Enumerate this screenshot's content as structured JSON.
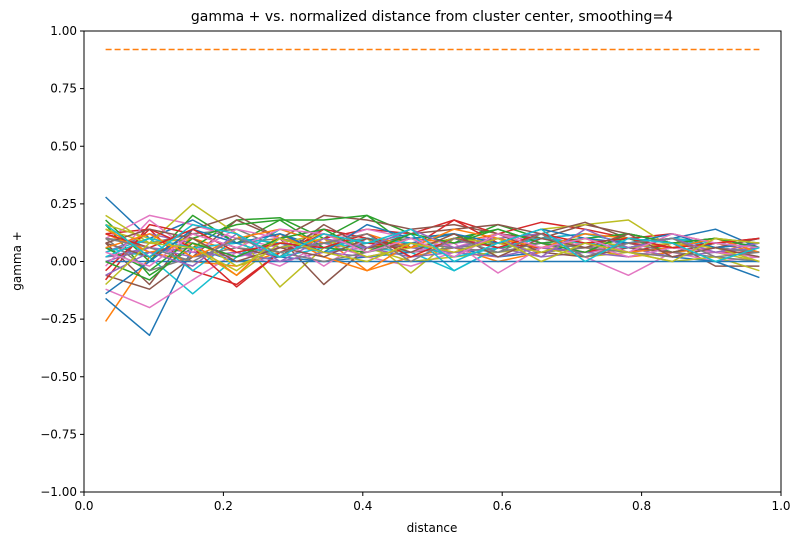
{
  "chart_data": {
    "type": "line",
    "title": "gamma + vs. normalized distance from cluster center, smoothing=4",
    "xlabel": "distance",
    "ylabel": "gamma +",
    "xlim": [
      0,
      1
    ],
    "ylim": [
      -1,
      1
    ],
    "x_ticks": [
      "0.0",
      "0.2",
      "0.4",
      "0.6",
      "0.8",
      "1.0"
    ],
    "y_ticks": [
      "−1.00",
      "−0.75",
      "−0.50",
      "−0.25",
      "0.00",
      "0.25",
      "0.50",
      "0.75",
      "1.00"
    ],
    "grid": false,
    "legend": "none",
    "x": [
      0.031,
      0.094,
      0.156,
      0.219,
      0.281,
      0.344,
      0.406,
      0.469,
      0.531,
      0.594,
      0.656,
      0.719,
      0.781,
      0.844,
      0.906,
      0.969
    ],
    "reference_line": {
      "y": 0.92,
      "style": "dashed",
      "color": "#ff7f0e"
    },
    "palette": [
      "#1f77b4",
      "#ff7f0e",
      "#2ca02c",
      "#d62728",
      "#9467bd",
      "#8c564b",
      "#e377c2",
      "#7f7f7f",
      "#bcbd22",
      "#17becf"
    ],
    "series": [
      {
        "values": [
          0.28,
          0.1,
          0.18,
          0.08,
          0.12,
          0.06,
          0.1,
          0.08,
          0.12,
          0.06,
          0.1,
          0.12,
          0.08,
          0.1,
          0.14,
          0.06
        ]
      },
      {
        "values": [
          -0.26,
          0.02,
          0.1,
          0.04,
          0.08,
          0.12,
          0.06,
          0.1,
          0.08,
          0.12,
          0.06,
          0.08,
          0.1,
          0.06,
          0.08,
          0.04
        ]
      },
      {
        "values": [
          0.16,
          -0.06,
          0.06,
          0.18,
          0.19,
          0.1,
          0.2,
          0.12,
          0.08,
          0.16,
          0.1,
          0.08,
          0.06,
          0.1,
          0.08,
          0.06
        ]
      },
      {
        "values": [
          0.12,
          0.14,
          -0.04,
          -0.1,
          0.04,
          0.1,
          0.14,
          0.12,
          0.18,
          0.12,
          0.17,
          0.14,
          0.1,
          0.12,
          0.08,
          0.06
        ]
      },
      {
        "values": [
          0.04,
          0.12,
          0.08,
          0.02,
          0.06,
          0.14,
          0.1,
          0.06,
          0.08,
          0.1,
          0.12,
          0.06,
          0.08,
          0.04,
          0.06,
          0.1
        ]
      },
      {
        "values": [
          -0.06,
          -0.12,
          0.02,
          0.18,
          0.1,
          0.2,
          0.18,
          0.14,
          0.16,
          0.12,
          0.1,
          0.16,
          0.12,
          0.08,
          -0.02,
          -0.02
        ]
      },
      {
        "values": [
          0.1,
          0.2,
          0.16,
          0.1,
          0.06,
          0.08,
          0.02,
          -0.02,
          0.04,
          0.06,
          0.08,
          0.02,
          -0.06,
          0.04,
          0.0,
          0.02
        ]
      },
      {
        "values": [
          0.02,
          0.04,
          0.06,
          0.08,
          0.1,
          0.06,
          0.08,
          0.1,
          0.06,
          0.08,
          0.1,
          0.06,
          0.08,
          0.1,
          0.06,
          0.08
        ]
      },
      {
        "values": [
          0.2,
          0.08,
          0.25,
          0.12,
          -0.11,
          0.06,
          0.1,
          -0.05,
          0.1,
          0.08,
          0.14,
          0.16,
          0.18,
          0.06,
          0.04,
          0.0
        ]
      },
      {
        "values": [
          0.06,
          0.02,
          -0.14,
          0.02,
          0.14,
          0.08,
          0.06,
          0.04,
          -0.04,
          0.06,
          0.08,
          0.1,
          0.06,
          0.08,
          0.04,
          0.02
        ]
      },
      {
        "values": [
          -0.16,
          -0.32,
          0.06,
          0.0,
          0.02,
          0.0,
          0.02,
          0.04,
          0.06,
          0.02,
          0.04,
          0.08,
          0.06,
          0.02,
          0.0,
          -0.07
        ]
      },
      {
        "values": [
          0.14,
          0.04,
          0.0,
          -0.02,
          0.04,
          0.1,
          -0.04,
          0.02,
          0.06,
          0.0,
          0.04,
          0.06,
          0.02,
          0.04,
          0.06,
          0.04
        ]
      },
      {
        "values": [
          0.18,
          0.0,
          0.2,
          0.08,
          0.18,
          0.18,
          0.2,
          0.06,
          0.1,
          0.14,
          0.08,
          0.06,
          0.1,
          0.04,
          0.08,
          0.06
        ]
      },
      {
        "values": [
          -0.08,
          0.16,
          0.12,
          0.06,
          0.02,
          0.14,
          0.1,
          0.06,
          0.18,
          0.08,
          0.06,
          0.1,
          0.04,
          0.08,
          0.1,
          0.06
        ]
      },
      {
        "values": [
          0.02,
          0.06,
          0.04,
          0.02,
          0.08,
          0.04,
          0.06,
          0.02,
          0.04,
          0.06,
          0.02,
          0.04,
          0.06,
          0.02,
          0.04,
          0.02
        ]
      },
      {
        "values": [
          0.08,
          -0.1,
          0.14,
          0.2,
          0.1,
          -0.1,
          0.06,
          0.12,
          0.14,
          0.16,
          0.12,
          0.17,
          0.1,
          0.08,
          0.06,
          0.1
        ]
      },
      {
        "values": [
          -0.12,
          -0.2,
          -0.08,
          0.04,
          -0.02,
          0.08,
          0.14,
          0.1,
          0.06,
          0.12,
          0.08,
          0.04,
          0.06,
          0.08,
          0.04,
          0.02
        ]
      },
      {
        "values": [
          0.1,
          0.08,
          0.12,
          0.14,
          0.06,
          0.08,
          0.1,
          0.04,
          0.06,
          0.08,
          0.04,
          0.06,
          0.08,
          0.04,
          0.02,
          0.0
        ]
      },
      {
        "values": [
          0.16,
          0.1,
          0.06,
          -0.06,
          0.08,
          0.12,
          0.06,
          0.0,
          0.02,
          0.04,
          0.06,
          0.02,
          0.04,
          0.0,
          0.02,
          -0.04
        ]
      },
      {
        "values": [
          0.04,
          0.1,
          -0.04,
          0.1,
          0.08,
          0.04,
          0.08,
          0.12,
          -0.04,
          0.06,
          0.1,
          0.12,
          0.08,
          0.1,
          0.06,
          0.04
        ]
      },
      {
        "values": [
          0.0,
          0.0,
          0.0,
          0.0,
          0.0,
          0.0,
          0.0,
          0.0,
          0.0,
          0.0,
          0.0,
          0.0,
          0.0,
          0.0,
          0.0,
          0.0
        ]
      },
      {
        "values": [
          0.12,
          0.04,
          0.08,
          -0.06,
          0.12,
          0.02,
          -0.04,
          0.08,
          0.04,
          0.1,
          0.06,
          0.08,
          0.04,
          0.06,
          0.08,
          0.06
        ]
      },
      {
        "values": [
          0.06,
          -0.04,
          0.1,
          0.16,
          0.18,
          0.06,
          0.04,
          0.1,
          0.12,
          0.06,
          0.08,
          0.1,
          0.12,
          0.08,
          0.1,
          0.08
        ]
      },
      {
        "values": [
          -0.04,
          0.14,
          0.06,
          -0.11,
          0.04,
          0.12,
          0.08,
          0.06,
          0.1,
          0.08,
          0.06,
          0.04,
          0.08,
          0.06,
          0.04,
          0.04
        ]
      },
      {
        "values": [
          0.0,
          0.06,
          0.02,
          0.04,
          0.0,
          0.04,
          0.02,
          0.06,
          0.04,
          0.02,
          0.06,
          0.04,
          0.02,
          0.06,
          0.04,
          0.06
        ]
      },
      {
        "values": [
          0.08,
          0.02,
          0.12,
          0.06,
          0.02,
          0.16,
          0.06,
          0.08,
          0.02,
          0.12,
          0.04,
          0.02,
          0.06,
          0.04,
          0.08,
          0.1
        ]
      },
      {
        "values": [
          -0.02,
          0.18,
          0.04,
          0.14,
          0.1,
          -0.02,
          0.1,
          0.04,
          0.08,
          -0.05,
          0.06,
          0.08,
          0.02,
          0.06,
          0.04,
          0.02
        ]
      },
      {
        "values": [
          0.1,
          -0.04,
          0.02,
          0.06,
          0.04,
          0.0,
          0.04,
          0.08,
          0.06,
          0.04,
          0.08,
          0.06,
          0.04,
          0.02,
          0.06,
          0.04
        ]
      },
      {
        "values": [
          0.14,
          0.08,
          0.1,
          -0.02,
          0.06,
          0.1,
          0.02,
          0.06,
          0.1,
          0.08,
          0.04,
          0.1,
          0.06,
          0.08,
          0.06,
          0.0
        ]
      },
      {
        "values": [
          0.02,
          0.1,
          0.06,
          0.08,
          0.02,
          0.06,
          0.1,
          0.08,
          0.02,
          0.06,
          0.1,
          0.08,
          0.06,
          0.1,
          0.08,
          0.06
        ]
      },
      {
        "values": [
          -0.14,
          0.0,
          0.14,
          0.08,
          0.12,
          0.04,
          0.16,
          0.1,
          0.12,
          0.08,
          0.14,
          0.1,
          0.08,
          0.12,
          0.06,
          0.08
        ]
      },
      {
        "values": [
          0.06,
          0.12,
          0.02,
          0.1,
          0.14,
          0.08,
          0.12,
          0.06,
          0.14,
          0.1,
          0.06,
          0.12,
          0.1,
          0.06,
          0.1,
          0.04
        ]
      },
      {
        "values": [
          0.0,
          -0.08,
          0.08,
          0.02,
          0.1,
          0.14,
          0.04,
          0.12,
          0.08,
          0.14,
          0.08,
          0.04,
          0.12,
          0.08,
          0.1,
          0.06
        ]
      },
      {
        "values": [
          0.12,
          0.06,
          0.14,
          0.04,
          0.08,
          0.06,
          0.12,
          0.02,
          0.1,
          0.06,
          0.12,
          0.08,
          0.1,
          0.06,
          0.08,
          0.1
        ]
      },
      {
        "values": [
          -0.06,
          0.04,
          -0.02,
          0.12,
          0.0,
          0.1,
          0.06,
          0.14,
          0.06,
          0.1,
          0.02,
          0.14,
          0.06,
          0.1,
          0.04,
          0.08
        ]
      },
      {
        "values": [
          0.08,
          0.14,
          0.1,
          0.0,
          0.06,
          0.02,
          0.1,
          0.04,
          0.12,
          0.02,
          0.1,
          0.06,
          0.12,
          0.02,
          0.06,
          0.02
        ]
      },
      {
        "values": [
          0.04,
          -0.02,
          0.12,
          0.06,
          0.14,
          0.12,
          0.04,
          0.1,
          0.02,
          0.12,
          0.06,
          0.1,
          0.04,
          0.12,
          0.08,
          0.06
        ]
      },
      {
        "values": [
          0.1,
          0.06,
          0.0,
          0.1,
          0.04,
          0.08,
          0.12,
          0.0,
          0.1,
          0.04,
          0.12,
          0.02,
          0.08,
          0.1,
          0.02,
          0.04
        ]
      },
      {
        "values": [
          -0.1,
          0.08,
          0.06,
          -0.04,
          0.1,
          0.04,
          0.0,
          0.08,
          0.04,
          0.1,
          0.0,
          0.08,
          0.04,
          0.0,
          0.1,
          0.08
        ]
      },
      {
        "values": [
          0.16,
          0.02,
          0.16,
          0.12,
          0.02,
          0.12,
          0.08,
          0.14,
          0.0,
          0.08,
          0.14,
          0.0,
          0.1,
          0.08,
          0.0,
          0.06
        ]
      }
    ]
  }
}
